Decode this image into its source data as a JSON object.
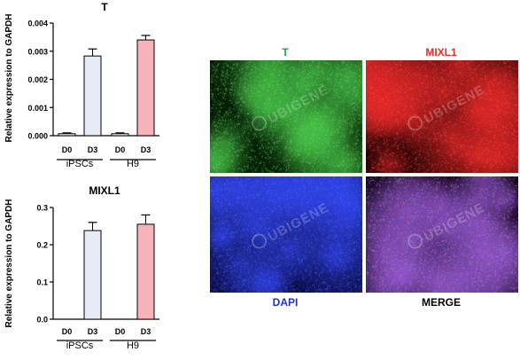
{
  "chart_data": [
    {
      "type": "bar",
      "title": "T",
      "ylabel": "Relative expression to GAPDH",
      "ylim": [
        0,
        0.004
      ],
      "yticks": [
        "0.000",
        "0.001",
        "0.002",
        "0.003",
        "0.004"
      ],
      "categories": [
        "D0",
        "D3",
        "D0",
        "D3"
      ],
      "groups": [
        "iPSCs",
        "H9"
      ],
      "values": [
        7e-05,
        0.00283,
        7e-05,
        0.0034
      ],
      "errors": [
        3e-05,
        0.00025,
        3e-05,
        0.00016
      ],
      "colors": [
        "#ffffff",
        "#e6ecf5",
        "#ffffff",
        "#f7b3ba"
      ]
    },
    {
      "type": "bar",
      "title": "MIXL1",
      "ylabel": "Relative expression to GAPDH",
      "ylim": [
        0,
        0.3
      ],
      "yticks": [
        "0.0",
        "0.1",
        "0.2",
        "0.3"
      ],
      "categories": [
        "D0",
        "D3",
        "D0",
        "D3"
      ],
      "groups": [
        "iPSCs",
        "H9"
      ],
      "values": [
        0,
        0.238,
        0,
        0.255
      ],
      "errors": [
        0,
        0.022,
        0,
        0.025
      ],
      "colors": [
        "#ffffff",
        "#e6ecf5",
        "#ffffff",
        "#f7b3ba"
      ]
    }
  ],
  "images": [
    {
      "label": "T",
      "label_color": "#2e9e4f",
      "tint": "green"
    },
    {
      "label": "MIXL1",
      "label_color": "#e0302a",
      "tint": "red"
    },
    {
      "label": "DAPI",
      "label_color": "#1e2fd6",
      "tint": "blue"
    },
    {
      "label": "MERGE",
      "label_color": "#000000",
      "tint": "merge"
    }
  ],
  "watermark": "UBIGENE"
}
